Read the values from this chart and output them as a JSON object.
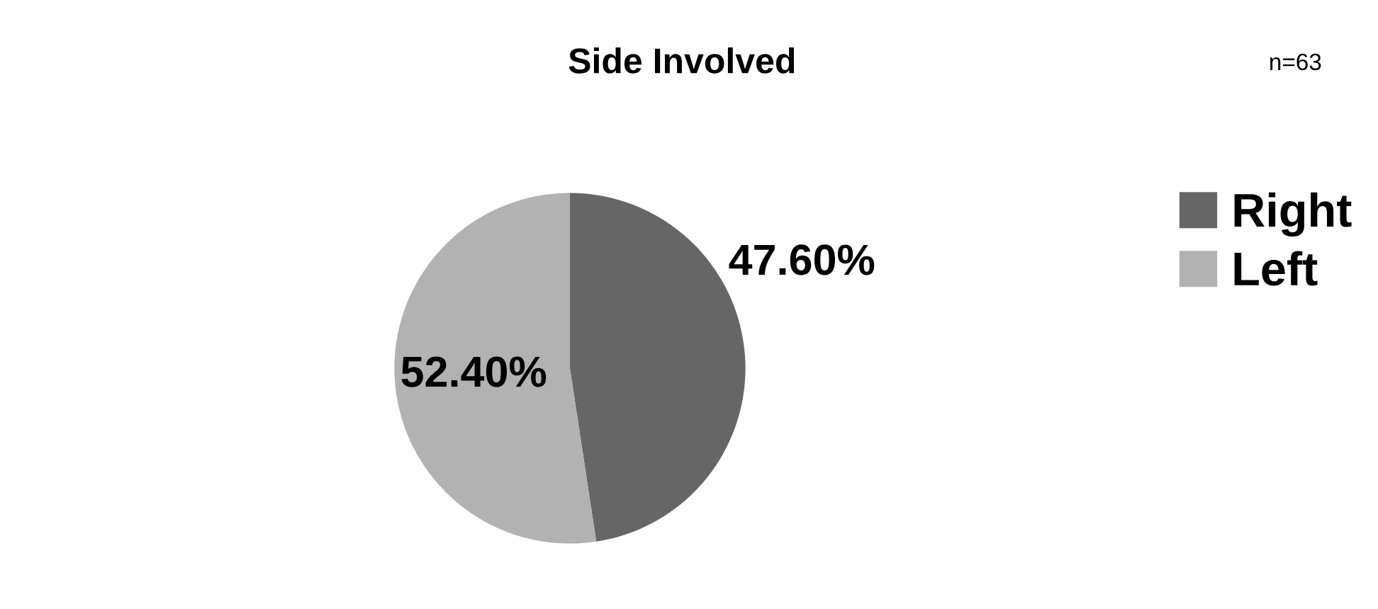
{
  "chart_data": {
    "type": "pie",
    "title": "Side Involved",
    "annotations": [
      "n=63"
    ],
    "categories": [
      "Right",
      "Left"
    ],
    "values": [
      47.6,
      52.4
    ],
    "colors": [
      "#666666",
      "#b2b2b2"
    ],
    "value_labels": [
      "47.60%",
      "52.40%"
    ],
    "legend": "right"
  }
}
